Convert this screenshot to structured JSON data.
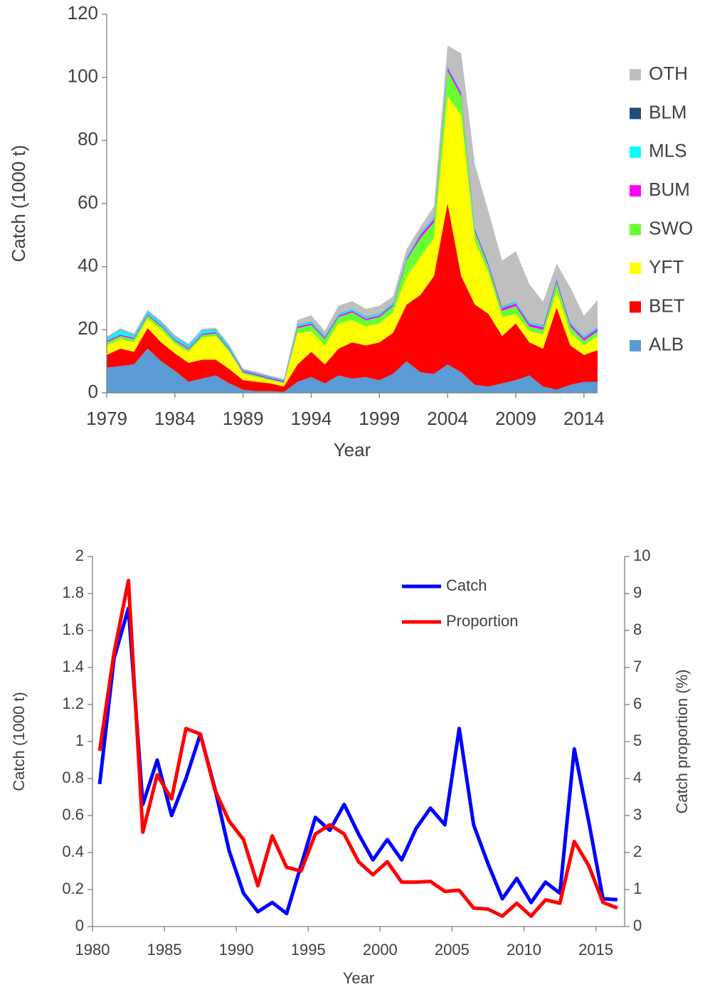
{
  "chart_data": [
    {
      "type": "area",
      "stacked": true,
      "xlabel": "Year",
      "ylabel": "Catch (1000 t)",
      "legend": "right",
      "x": [
        1979,
        1980,
        1981,
        1982,
        1983,
        1984,
        1985,
        1986,
        1987,
        1988,
        1989,
        1990,
        1991,
        1992,
        1993,
        1994,
        1995,
        1996,
        1997,
        1998,
        1999,
        2000,
        2001,
        2002,
        2003,
        2004,
        2005,
        2006,
        2007,
        2008,
        2009,
        2010,
        2011,
        2012,
        2013,
        2014,
        2015
      ],
      "xlim": [
        1979,
        2015
      ],
      "xticks": [
        1979,
        1984,
        1989,
        1994,
        1999,
        2004,
        2009,
        2014
      ],
      "ylim": [
        0,
        120
      ],
      "yticks": [
        0,
        20,
        40,
        60,
        80,
        100,
        120
      ],
      "series": [
        {
          "name": "ALB",
          "color": "#5b9bd5",
          "values": [
            8,
            8.5,
            9,
            14,
            10,
            7,
            3.5,
            4.5,
            5.5,
            3,
            1,
            0.5,
            0.5,
            0.3,
            3.5,
            5,
            3,
            5.5,
            4.5,
            5,
            4,
            6,
            10,
            6.5,
            6,
            9,
            6.5,
            2.5,
            2,
            3,
            4,
            5.5,
            2,
            1,
            2.5,
            3.5,
            3.5
          ]
        },
        {
          "name": "BET",
          "color": "#ff0000",
          "values": [
            4,
            5.5,
            4,
            6.5,
            6,
            5.5,
            6,
            6,
            5,
            4.5,
            3,
            3,
            2.5,
            1.7,
            5.5,
            8,
            6,
            8.5,
            11.5,
            10,
            12,
            13,
            18,
            24.5,
            31,
            51,
            30.5,
            25.5,
            23,
            15,
            18,
            10.5,
            12,
            26,
            12.5,
            8.5,
            10
          ]
        },
        {
          "name": "YFT",
          "color": "#ffff00",
          "values": [
            3,
            3,
            3,
            3,
            4,
            3,
            3.5,
            7,
            7.5,
            5.5,
            2,
            1.5,
            1,
            1,
            10,
            6.5,
            6,
            8,
            7,
            6,
            6,
            6.5,
            9,
            12,
            12,
            34,
            51,
            20,
            13,
            6,
            3,
            3.5,
            4.5,
            5,
            4,
            3,
            4.5
          ]
        },
        {
          "name": "SWO",
          "color": "#66ff33",
          "values": [
            1,
            1,
            1,
            1,
            1,
            1,
            0.8,
            0.8,
            0.8,
            0.5,
            0.5,
            0.5,
            0.3,
            0.3,
            1.5,
            2,
            2,
            2,
            2.5,
            2,
            2,
            2,
            5,
            6,
            5,
            8,
            6,
            3,
            2,
            2,
            2.5,
            1.5,
            1.5,
            3,
            2,
            1.5,
            1.5
          ]
        },
        {
          "name": "BUM",
          "color": "#ff00ff",
          "values": [
            0.4,
            0.4,
            0.4,
            0.4,
            0.4,
            0.4,
            0.4,
            0.4,
            0.4,
            0.4,
            0.4,
            0.4,
            0.4,
            0.4,
            0.5,
            0.5,
            0.5,
            0.5,
            0.5,
            0.5,
            0.5,
            0.5,
            0.5,
            1,
            1,
            1,
            1,
            0.8,
            0.8,
            0.8,
            0.8,
            0.8,
            0.8,
            0.8,
            0.8,
            0.8,
            0.8
          ]
        },
        {
          "name": "MLS",
          "color": "#00ffff",
          "values": [
            0.8,
            1.5,
            0.8,
            0.8,
            0.8,
            0.8,
            0.8,
            1,
            0.8,
            0.8,
            0.3,
            0.3,
            0.3,
            0.3,
            0.5,
            0.5,
            0.5,
            0.5,
            0.5,
            0.5,
            0.5,
            0.5,
            0.5,
            0.5,
            0.5,
            0.5,
            0.5,
            0.5,
            0.5,
            0.5,
            0.5,
            0.5,
            0.5,
            0.5,
            0.5,
            0.5,
            0.5
          ]
        },
        {
          "name": "BLM",
          "color": "#1f4e79",
          "values": [
            0.1,
            0.1,
            0.1,
            0.1,
            0.1,
            0.1,
            0.1,
            0.1,
            0.1,
            0.1,
            0.1,
            0.1,
            0.1,
            0.1,
            0.1,
            0.1,
            0.1,
            0.1,
            0.1,
            0.1,
            0.1,
            0.1,
            0.1,
            0.1,
            0.1,
            0.1,
            0.1,
            0.1,
            0.1,
            0.1,
            0.1,
            0.1,
            0.1,
            0.1,
            0.1,
            0.1,
            0.1
          ]
        },
        {
          "name": "OTH",
          "color": "#bfbfbf",
          "values": [
            0.5,
            0.5,
            0.5,
            0.5,
            0.5,
            0.5,
            0.5,
            0.5,
            0.5,
            0.3,
            0.3,
            0.3,
            0.3,
            0.3,
            1.5,
            2,
            1.5,
            2.5,
            2.5,
            2.5,
            2.5,
            2,
            2.5,
            2,
            3.5,
            6.5,
            12,
            20,
            16,
            14.5,
            16,
            12,
            7.5,
            4.5,
            11,
            6.5,
            8.5
          ]
        }
      ]
    },
    {
      "type": "line",
      "xlabel": "Year",
      "ylabel": "Catch (1000 t)",
      "y2label": "Catch proportion  (%)",
      "legend": "upper right",
      "x": [
        1980.5,
        1981.5,
        1982.5,
        1983.5,
        1984.5,
        1985.5,
        1986.5,
        1987.5,
        1988.5,
        1989.5,
        1990.5,
        1991.5,
        1992.5,
        1993.5,
        1994.5,
        1995.5,
        1996.5,
        1997.5,
        1998.5,
        1999.5,
        2000.5,
        2001.5,
        2002.5,
        2003.5,
        2004.5,
        2005.5,
        2006.5,
        2007.5,
        2008.5,
        2009.5,
        2010.5,
        2011.5,
        2012.5,
        2013.5,
        2014.5,
        2015.5,
        2016.5
      ],
      "xlim": [
        1980,
        2017
      ],
      "xticks": [
        1980,
        1985,
        1990,
        1995,
        2000,
        2005,
        2010,
        2015
      ],
      "ylim": [
        0,
        2
      ],
      "yticks": [
        0,
        0.2,
        0.4,
        0.6,
        0.8,
        1,
        1.2,
        1.4,
        1.6,
        1.8,
        2
      ],
      "y2lim": [
        0,
        10
      ],
      "y2ticks": [
        0,
        1,
        2,
        3,
        4,
        5,
        6,
        7,
        8,
        9,
        10
      ],
      "series": [
        {
          "name": "Catch",
          "color": "#0000ff",
          "values": [
            0.77,
            1.45,
            1.72,
            0.66,
            0.9,
            0.6,
            0.8,
            1.04,
            0.75,
            0.41,
            0.18,
            0.08,
            0.13,
            0.07,
            0.33,
            0.59,
            0.52,
            0.66,
            0.5,
            0.36,
            0.47,
            0.36,
            0.53,
            0.64,
            0.55,
            1.07,
            0.55,
            0.34,
            0.15,
            0.26,
            0.13,
            0.24,
            0.18,
            0.96,
            0.57,
            0.15,
            0.145
          ]
        },
        {
          "name": "Proportion",
          "color": "#ff0000",
          "axis": "y2",
          "values": [
            4.75,
            7.4,
            9.35,
            2.55,
            4.1,
            3.45,
            5.35,
            5.2,
            3.7,
            2.85,
            2.35,
            1.1,
            2.45,
            1.6,
            1.5,
            2.5,
            2.75,
            2.5,
            1.75,
            1.4,
            1.75,
            1.2,
            1.2,
            1.22,
            0.95,
            0.98,
            0.5,
            0.47,
            0.28,
            0.63,
            0.28,
            0.72,
            0.63,
            2.3,
            1.65,
            0.65,
            0.5
          ]
        }
      ]
    }
  ]
}
